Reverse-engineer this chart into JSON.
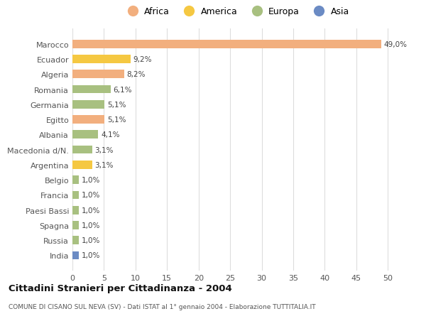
{
  "categories": [
    "Marocco",
    "Ecuador",
    "Algeria",
    "Romania",
    "Germania",
    "Egitto",
    "Albania",
    "Macedonia d/N.",
    "Argentina",
    "Belgio",
    "Francia",
    "Paesi Bassi",
    "Spagna",
    "Russia",
    "India"
  ],
  "values": [
    49.0,
    9.2,
    8.2,
    6.1,
    5.1,
    5.1,
    4.1,
    3.1,
    3.1,
    1.0,
    1.0,
    1.0,
    1.0,
    1.0,
    1.0
  ],
  "labels": [
    "49,0%",
    "9,2%",
    "8,2%",
    "6,1%",
    "5,1%",
    "5,1%",
    "4,1%",
    "3,1%",
    "3,1%",
    "1,0%",
    "1,0%",
    "1,0%",
    "1,0%",
    "1,0%",
    "1,0%"
  ],
  "colors": [
    "#F2AF7E",
    "#F5C842",
    "#F2AF7E",
    "#A8C080",
    "#A8C080",
    "#F2AF7E",
    "#A8C080",
    "#A8C080",
    "#F5C842",
    "#A8C080",
    "#A8C080",
    "#A8C080",
    "#A8C080",
    "#A8C080",
    "#6B8BC4"
  ],
  "legend_labels": [
    "Africa",
    "America",
    "Europa",
    "Asia"
  ],
  "legend_colors": [
    "#F2AF7E",
    "#F5C842",
    "#A8C080",
    "#6B8BC4"
  ],
  "title": "Cittadini Stranieri per Cittadinanza - 2004",
  "subtitle": "COMUNE DI CISANO SUL NEVA (SV) - Dati ISTAT al 1° gennaio 2004 - Elaborazione TUTTITALIA.IT",
  "xlim": [
    0,
    52
  ],
  "xticks": [
    0,
    5,
    10,
    15,
    20,
    25,
    30,
    35,
    40,
    45,
    50
  ],
  "background_color": "#ffffff",
  "grid_color": "#dddddd"
}
